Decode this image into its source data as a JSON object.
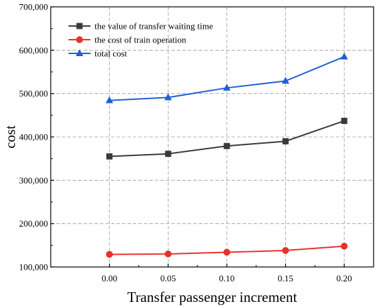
{
  "chart_data": {
    "type": "line",
    "xlabel": "Transfer passenger increment",
    "ylabel": "cost",
    "x": [
      0.0,
      0.05,
      0.1,
      0.15,
      0.2
    ],
    "x_tick_labels": [
      "0.00",
      "0.05",
      "0.10",
      "0.15",
      "0.20"
    ],
    "xlim": [
      -0.05,
      0.225
    ],
    "ylim": [
      100000,
      700000
    ],
    "y_ticks": [
      100000,
      200000,
      300000,
      400000,
      500000,
      600000,
      700000
    ],
    "y_tick_labels": [
      "100,000",
      "200,000",
      "300,000",
      "400,000",
      "500,000",
      "600,000",
      "700,000"
    ],
    "grid": true,
    "legend_position": "top-left",
    "series": [
      {
        "name": "the value of transfer waiting time",
        "values": [
          355000,
          361000,
          379000,
          390000,
          437000
        ],
        "color": "#3a3a3a",
        "marker": "square"
      },
      {
        "name": "the cost of train operation",
        "values": [
          129000,
          130000,
          134000,
          138000,
          148000
        ],
        "color": "#e8302c",
        "marker": "circle"
      },
      {
        "name": "total cost",
        "values": [
          484000,
          491000,
          513000,
          529000,
          585000
        ],
        "color": "#1f5fd6",
        "marker": "triangle"
      }
    ]
  }
}
